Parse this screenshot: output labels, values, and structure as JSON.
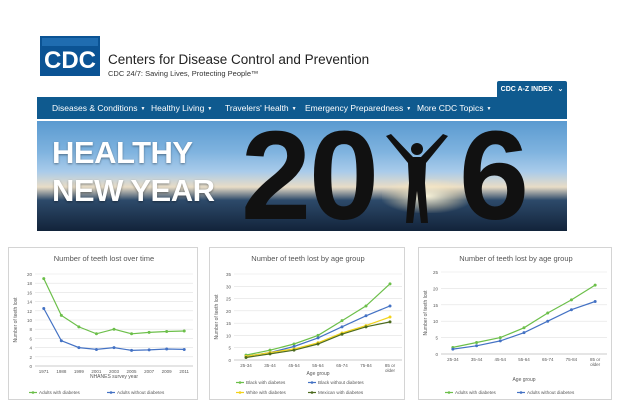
{
  "header": {
    "logo_text": "CDC",
    "org_name": "Centers for Disease Control and Prevention",
    "tagline": "CDC 24/7: Saving Lives, Protecting People™",
    "az_index_label": "CDC A-Z INDEX"
  },
  "nav": {
    "items": [
      {
        "label": "Diseases & Conditions"
      },
      {
        "label": "Healthy Living"
      },
      {
        "label": "Travelers' Health"
      },
      {
        "label": "Emergency Preparedness"
      },
      {
        "label": "More CDC Topics"
      }
    ]
  },
  "banner": {
    "line1": "HEALTHY",
    "line2": "NEW YEAR",
    "digit1": "2",
    "digit2": "0",
    "digit3": "6"
  },
  "colors": {
    "brand_blue": "#0f5a8f",
    "series_green": "#6cbf4a",
    "series_blue": "#4472c4",
    "series_yellow": "#f2d31a",
    "series_darkgreen": "#4d6b1f"
  },
  "chart_data": [
    {
      "type": "line",
      "title": "Number of teeth lost over time",
      "xlabel": "NHANES survey year",
      "ylabel": "Number of teeth lost",
      "x": [
        "1971",
        "1988",
        "1999",
        "2001",
        "2003",
        "2005",
        "2007",
        "2009",
        "2011"
      ],
      "ylim": [
        0,
        20
      ],
      "yticks": [
        0,
        2,
        4,
        6,
        8,
        10,
        12,
        14,
        16,
        18,
        20
      ],
      "grid": true,
      "legend": "bottom",
      "series": [
        {
          "name": "Adults with diabetes",
          "color": "#6cbf4a",
          "values": [
            19,
            11,
            8.5,
            7,
            8,
            7,
            7.3,
            7.5,
            7.6
          ]
        },
        {
          "name": "Adults without diabetes",
          "color": "#4472c4",
          "values": [
            12.5,
            5.5,
            4,
            3.6,
            4,
            3.4,
            3.5,
            3.7,
            3.6
          ]
        }
      ]
    },
    {
      "type": "line",
      "title": "Number of teeth lost by age group",
      "xlabel": "Age group",
      "ylabel": "Number of teeth lost",
      "x": [
        "25-34",
        "35-44",
        "45-54",
        "55-64",
        "65-74",
        "75-84",
        "85 or older"
      ],
      "ylim": [
        0,
        35
      ],
      "yticks": [
        0,
        5,
        10,
        15,
        20,
        25,
        30,
        35
      ],
      "grid": true,
      "legend": "bottom",
      "series": [
        {
          "name": "Black with diabetes",
          "color": "#6cbf4a",
          "values": [
            2,
            4,
            6.5,
            10,
            16,
            22,
            31
          ]
        },
        {
          "name": "Black without diabetes",
          "color": "#4472c4",
          "values": [
            1.5,
            3,
            5.5,
            9,
            13.5,
            18,
            22
          ]
        },
        {
          "name": "White with diabetes",
          "color": "#f2d31a",
          "values": [
            1.5,
            3,
            4.5,
            7,
            11,
            14,
            17.5
          ]
        },
        {
          "name": "Mexican with diabetes",
          "color": "#4d6b1f",
          "values": [
            1,
            2.5,
            4,
            6.5,
            10.5,
            13.5,
            15.5
          ]
        }
      ]
    },
    {
      "type": "line",
      "title": "Number of teeth lost by age group",
      "xlabel": "Age group",
      "ylabel": "Number of teeth lost",
      "x": [
        "25-34",
        "35-44",
        "45-54",
        "55-64",
        "65-74",
        "75-84",
        "85 or older"
      ],
      "ylim": [
        0,
        25
      ],
      "yticks": [
        0,
        5,
        10,
        15,
        20,
        25
      ],
      "grid": true,
      "legend": "bottom",
      "series": [
        {
          "name": "Adults with diabetes",
          "color": "#6cbf4a",
          "values": [
            2,
            3.5,
            5,
            8,
            12.5,
            16.5,
            21
          ]
        },
        {
          "name": "Adults without diabetes",
          "color": "#4472c4",
          "values": [
            1.5,
            2.5,
            4,
            6.5,
            10,
            13.5,
            16
          ]
        }
      ]
    }
  ]
}
